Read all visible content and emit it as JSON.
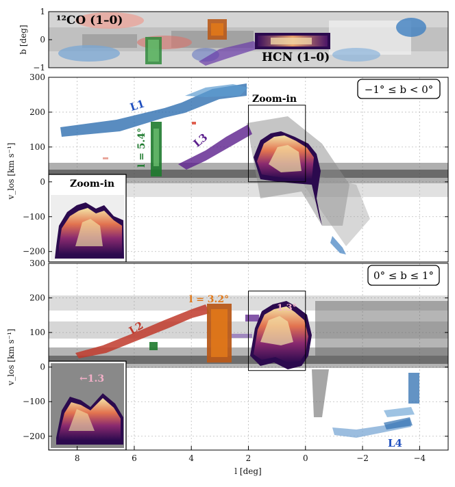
{
  "colors": {
    "L1": "#1f5e9e",
    "L2": "#c0392b",
    "L3": "#5b1f8c",
    "L4": "#1f5e9e",
    "l54": "#1e7a2e",
    "l32": "#e0781a",
    "hcn_zoom": "#e9c7a0",
    "grey": "#555555"
  },
  "chart_data": [
    {
      "type": "heatmap",
      "panel": "top",
      "xlim": [
        9,
        -5
      ],
      "ylim": [
        -1,
        1
      ],
      "ylabel": "b [deg]",
      "yticks": [
        1,
        0,
        -1
      ],
      "annotations": {
        "co": "¹²CO (1–0)",
        "hcn": "HCN (1–0)"
      },
      "features": [
        {
          "name": "HCN (1-0) strip",
          "l": [
            1.8,
            -0.6
          ],
          "b": [
            -0.2,
            0.25
          ],
          "color": "magma"
        },
        {
          "name": "l=5.4 box",
          "l": [
            5.6,
            5.1
          ],
          "b": [
            -0.8,
            0.0
          ],
          "color": "green"
        },
        {
          "name": "l=3.2 box",
          "l": [
            3.5,
            2.8
          ],
          "b": [
            0.0,
            0.8
          ],
          "color": "orange"
        }
      ]
    },
    {
      "type": "heatmap",
      "panel": "middle",
      "xlim": [
        9,
        -5
      ],
      "ylim": [
        -230,
        300
      ],
      "xlabel": "",
      "ylabel": "v_los [km s⁻¹]",
      "yticks": [
        300,
        200,
        100,
        0,
        -100,
        -200
      ],
      "box_label": "−1° ≤ b < 0°",
      "zoom_label": "Zoom-in",
      "inset_label": "Zoom-in",
      "zoom_box": {
        "l": [
          2,
          0
        ],
        "v": [
          0,
          220
        ]
      },
      "series": [
        {
          "name": "L1",
          "points": [
            [
              8.5,
              130
            ],
            [
              7,
              160
            ],
            [
              5.5,
              185
            ],
            [
              4.5,
              210
            ],
            [
              3.5,
              250
            ],
            [
              2.5,
              270
            ]
          ]
        },
        {
          "name": "L3",
          "points": [
            [
              4.8,
              30
            ],
            [
              4,
              70
            ],
            [
              3.2,
              110
            ],
            [
              2.5,
              140
            ]
          ]
        },
        {
          "name": "l = 5.4°",
          "points": [
            [
              5.4,
              20
            ],
            [
              5.4,
              180
            ]
          ]
        }
      ],
      "labels": {
        "L1": "L1",
        "L3": "L3",
        "l54": "l = 5.4°"
      }
    },
    {
      "type": "heatmap",
      "panel": "bottom",
      "xlim": [
        9,
        -5
      ],
      "ylim": [
        -240,
        300
      ],
      "xlabel": "l [deg]",
      "ylabel": "v_los [km s⁻¹]",
      "xticks": [
        8,
        6,
        4,
        2,
        0,
        -2,
        -4
      ],
      "yticks": [
        300,
        200,
        100,
        0,
        -100,
        -200
      ],
      "box_label": "0° ≤ b ≤ 1°",
      "zoom_box": {
        "l": [
          2,
          0
        ],
        "v": [
          -10,
          220
        ]
      },
      "series": [
        {
          "name": "L2",
          "points": [
            [
              7,
              40
            ],
            [
              6,
              80
            ],
            [
              5,
              120
            ],
            [
              4,
              165
            ],
            [
              3.5,
              185
            ]
          ]
        },
        {
          "name": "L4",
          "points": [
            [
              -1,
              -210
            ],
            [
              -2,
              -200
            ],
            [
              -3,
              -180
            ]
          ]
        },
        {
          "name": "l = 3.2°",
          "points": [
            [
              3.2,
              20
            ],
            [
              3.2,
              180
            ]
          ]
        }
      ],
      "labels": {
        "L2": "L2",
        "L4": "L4",
        "l32": "l = 3.2°",
        "v13": "1.3°",
        "inset13": "←1.3"
      }
    }
  ]
}
